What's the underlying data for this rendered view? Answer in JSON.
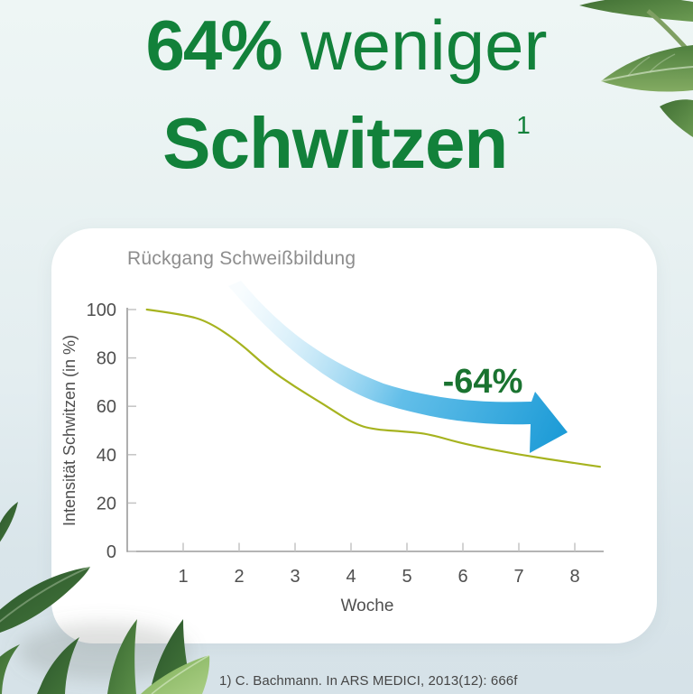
{
  "headline": {
    "strong": "64%",
    "rest": " weniger",
    "line2": "Schwitzen",
    "sup": "1",
    "color": "#12813a"
  },
  "footnote": "1) C. Bachmann. In ARS MEDICI, 2013(12): 666f",
  "colors": {
    "headline_green": "#12813a",
    "line_green": "#a6b31f",
    "arrow_blue": "#29a8e0",
    "annotation_green": "#1a7330",
    "title_gray": "#8d8d8d",
    "axis_gray": "#4f4f4f",
    "card_white": "#ffffff"
  },
  "icons": {
    "top_right": "sage-leaves-photo",
    "bottom_left": "sage-leaves-photo",
    "arrow": "decline-swoosh-arrow"
  },
  "chart_data": {
    "type": "line",
    "title": "Rückgang Schweißbildung",
    "xlabel": "Woche",
    "ylabel": "Intensität Schwitzen (in %)",
    "x_ticks": [
      1,
      2,
      3,
      4,
      5,
      6,
      7,
      8
    ],
    "y_ticks": [
      0,
      20,
      40,
      60,
      80,
      100
    ],
    "xlim": [
      0,
      8.6
    ],
    "ylim": [
      0,
      100
    ],
    "grid": false,
    "legend": false,
    "annotation": {
      "label": "-64%",
      "meaning": "64% Rückgang der Schweißintensität"
    },
    "series": [
      {
        "name": "Intensität Schwitzen (in %)",
        "color": "#a6b31f",
        "points": [
          [
            0.35,
            100
          ],
          [
            1,
            98
          ],
          [
            1.45,
            95
          ],
          [
            2,
            86.5
          ],
          [
            2.5,
            76
          ],
          [
            3,
            68
          ],
          [
            3.5,
            61
          ],
          [
            4,
            53.5
          ],
          [
            4.35,
            50.5
          ],
          [
            5,
            49.5
          ],
          [
            5.4,
            48.5
          ],
          [
            6,
            44.5
          ],
          [
            7,
            40
          ],
          [
            8,
            36.5
          ],
          [
            8.45,
            35
          ]
        ]
      }
    ]
  }
}
